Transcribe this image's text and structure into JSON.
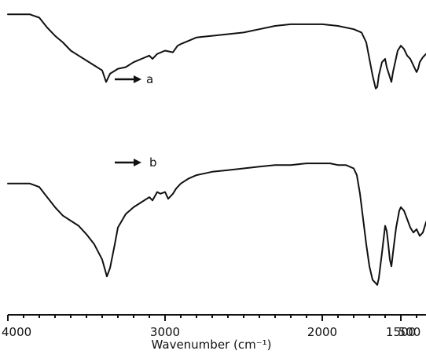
{
  "chart_data": {
    "type": "line",
    "title": "",
    "xlabel": "Wavenumber (cm⁻¹)",
    "ylabel": "",
    "xlim": [
      4000,
      430
    ],
    "ylim": [
      0,
      100
    ],
    "x_reversed": true,
    "grid": false,
    "x_ticks": [
      4000,
      3000,
      2000,
      1500,
      1000,
      500
    ],
    "x_tick_labels": [
      "4000",
      "3000",
      "2000",
      "1500",
      "1000",
      "500"
    ],
    "series": [
      {
        "name": "a",
        "points": [
          [
            4000,
            97
          ],
          [
            3860,
            97
          ],
          [
            3800,
            95
          ],
          [
            3750,
            89
          ],
          [
            3700,
            84
          ],
          [
            3650,
            80
          ],
          [
            3600,
            75
          ],
          [
            3550,
            72
          ],
          [
            3500,
            69
          ],
          [
            3450,
            66
          ],
          [
            3400,
            63
          ],
          [
            3375,
            56
          ],
          [
            3350,
            61
          ],
          [
            3300,
            64
          ],
          [
            3250,
            65
          ],
          [
            3200,
            68
          ],
          [
            3150,
            70
          ],
          [
            3100,
            72
          ],
          [
            3080,
            70
          ],
          [
            3050,
            73
          ],
          [
            3000,
            75
          ],
          [
            2950,
            74
          ],
          [
            2920,
            78
          ],
          [
            2900,
            79
          ],
          [
            2850,
            81
          ],
          [
            2800,
            83
          ],
          [
            2700,
            84
          ],
          [
            2600,
            85
          ],
          [
            2500,
            86
          ],
          [
            2400,
            88
          ],
          [
            2300,
            90
          ],
          [
            2200,
            91
          ],
          [
            2100,
            91
          ],
          [
            2000,
            91
          ],
          [
            1900,
            90
          ],
          [
            1800,
            88
          ],
          [
            1750,
            86
          ],
          [
            1720,
            80
          ],
          [
            1700,
            70
          ],
          [
            1680,
            60
          ],
          [
            1660,
            52
          ],
          [
            1650,
            53
          ],
          [
            1640,
            60
          ],
          [
            1620,
            68
          ],
          [
            1600,
            70
          ],
          [
            1590,
            65
          ],
          [
            1570,
            59
          ],
          [
            1560,
            56
          ],
          [
            1550,
            62
          ],
          [
            1520,
            75
          ],
          [
            1500,
            78
          ],
          [
            1480,
            76
          ],
          [
            1460,
            72
          ],
          [
            1440,
            70
          ],
          [
            1420,
            66
          ],
          [
            1400,
            62
          ],
          [
            1390,
            64
          ],
          [
            1380,
            68
          ],
          [
            1360,
            71
          ],
          [
            1340,
            73
          ],
          [
            1320,
            72
          ],
          [
            1300,
            68
          ],
          [
            1280,
            63
          ],
          [
            1260,
            60
          ],
          [
            1250,
            60
          ],
          [
            1240,
            62
          ],
          [
            1220,
            66
          ],
          [
            1200,
            68
          ],
          [
            1180,
            66
          ],
          [
            1160,
            68
          ],
          [
            1150,
            65
          ],
          [
            1140,
            68
          ],
          [
            1120,
            72
          ],
          [
            1110,
            73
          ],
          [
            1100,
            71
          ],
          [
            1090,
            66
          ],
          [
            1080,
            63
          ],
          [
            1070,
            60
          ],
          [
            1060,
            56
          ],
          [
            1050,
            60
          ],
          [
            1040,
            62
          ],
          [
            1020,
            66
          ],
          [
            1000,
            70
          ],
          [
            980,
            73
          ],
          [
            960,
            75
          ],
          [
            940,
            74
          ],
          [
            920,
            76
          ],
          [
            900,
            77
          ],
          [
            880,
            78
          ],
          [
            860,
            80
          ],
          [
            840,
            79
          ],
          [
            820,
            80
          ],
          [
            800,
            82
          ],
          [
            780,
            82
          ],
          [
            760,
            80
          ],
          [
            740,
            81
          ],
          [
            720,
            79
          ],
          [
            700,
            78
          ],
          [
            680,
            76
          ],
          [
            660,
            73
          ],
          [
            640,
            70
          ],
          [
            620,
            68
          ],
          [
            600,
            70
          ],
          [
            580,
            74
          ],
          [
            560,
            77
          ],
          [
            540,
            80
          ],
          [
            520,
            82
          ],
          [
            500,
            82
          ],
          [
            480,
            80
          ],
          [
            460,
            79
          ],
          [
            440,
            80
          ],
          [
            430,
            79
          ]
        ]
      },
      {
        "name": "b",
        "points": [
          [
            4000,
            61
          ],
          [
            3860,
            61
          ],
          [
            3800,
            59
          ],
          [
            3750,
            53
          ],
          [
            3700,
            47
          ],
          [
            3650,
            42
          ],
          [
            3600,
            39
          ],
          [
            3550,
            36
          ],
          [
            3500,
            31
          ],
          [
            3450,
            25
          ],
          [
            3400,
            16
          ],
          [
            3370,
            6
          ],
          [
            3350,
            11
          ],
          [
            3320,
            25
          ],
          [
            3300,
            35
          ],
          [
            3250,
            43
          ],
          [
            3200,
            47
          ],
          [
            3150,
            50
          ],
          [
            3100,
            53
          ],
          [
            3080,
            51
          ],
          [
            3050,
            56
          ],
          [
            3030,
            55
          ],
          [
            3000,
            56
          ],
          [
            2980,
            52
          ],
          [
            2950,
            55
          ],
          [
            2930,
            58
          ],
          [
            2900,
            61
          ],
          [
            2850,
            64
          ],
          [
            2800,
            66
          ],
          [
            2700,
            68
          ],
          [
            2600,
            69
          ],
          [
            2500,
            70
          ],
          [
            2400,
            71
          ],
          [
            2300,
            72
          ],
          [
            2200,
            72
          ],
          [
            2100,
            73
          ],
          [
            2000,
            73
          ],
          [
            1950,
            73
          ],
          [
            1900,
            72
          ],
          [
            1850,
            72
          ],
          [
            1800,
            70
          ],
          [
            1780,
            66
          ],
          [
            1760,
            55
          ],
          [
            1740,
            40
          ],
          [
            1720,
            25
          ],
          [
            1700,
            12
          ],
          [
            1680,
            4
          ],
          [
            1660,
            2
          ],
          [
            1650,
            1
          ],
          [
            1640,
            5
          ],
          [
            1620,
            20
          ],
          [
            1600,
            36
          ],
          [
            1590,
            33
          ],
          [
            1580,
            25
          ],
          [
            1570,
            16
          ],
          [
            1560,
            12
          ],
          [
            1550,
            20
          ],
          [
            1530,
            35
          ],
          [
            1510,
            45
          ],
          [
            1500,
            47
          ],
          [
            1480,
            45
          ],
          [
            1460,
            40
          ],
          [
            1440,
            35
          ],
          [
            1420,
            32
          ],
          [
            1400,
            34
          ],
          [
            1380,
            30
          ],
          [
            1360,
            32
          ],
          [
            1340,
            38
          ],
          [
            1320,
            42
          ],
          [
            1300,
            40
          ],
          [
            1280,
            32
          ],
          [
            1260,
            28
          ],
          [
            1240,
            34
          ],
          [
            1220,
            45
          ],
          [
            1200,
            50
          ],
          [
            1180,
            47
          ],
          [
            1160,
            32
          ],
          [
            1150,
            28
          ],
          [
            1140,
            25
          ],
          [
            1130,
            30
          ],
          [
            1120,
            42
          ],
          [
            1110,
            50
          ],
          [
            1100,
            52
          ],
          [
            1090,
            48
          ],
          [
            1080,
            40
          ],
          [
            1060,
            30
          ],
          [
            1050,
            18
          ],
          [
            1040,
            14
          ],
          [
            1030,
            28
          ],
          [
            1020,
            40
          ],
          [
            1000,
            47
          ],
          [
            980,
            50
          ],
          [
            960,
            52
          ],
          [
            940,
            53
          ],
          [
            920,
            54
          ],
          [
            900,
            54
          ],
          [
            880,
            55
          ],
          [
            860,
            53
          ],
          [
            840,
            52
          ],
          [
            800,
            48
          ],
          [
            780,
            45
          ],
          [
            760,
            42
          ],
          [
            740,
            38
          ],
          [
            720,
            35
          ],
          [
            700,
            33
          ],
          [
            680,
            32
          ],
          [
            660,
            35
          ],
          [
            640,
            37
          ],
          [
            620,
            33
          ],
          [
            600,
            35
          ],
          [
            580,
            37
          ],
          [
            560,
            36
          ],
          [
            540,
            40
          ],
          [
            520,
            42
          ],
          [
            500,
            45
          ],
          [
            480,
            47
          ],
          [
            460,
            49
          ],
          [
            440,
            50
          ],
          [
            430,
            49
          ]
        ]
      }
    ],
    "annotations": [
      {
        "text": "a",
        "series": "a",
        "arrow": true
      },
      {
        "text": "b",
        "series": "b",
        "arrow": true
      }
    ]
  }
}
